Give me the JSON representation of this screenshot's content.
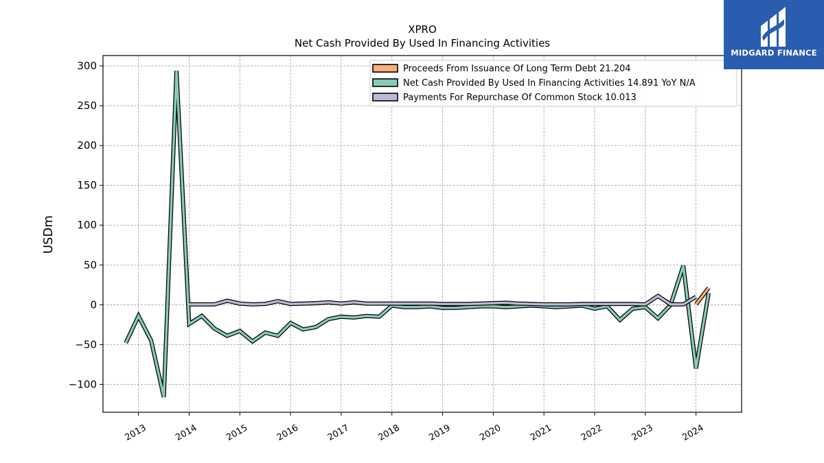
{
  "logo": {
    "text": "MIDGARD FINANCE",
    "icon": "midgard-logo-icon",
    "background": "#2a5db0"
  },
  "chart_data": {
    "type": "line",
    "title": "XPRO",
    "subtitle": "Net Cash Provided By Used In Financing Activities",
    "xlabel": "",
    "ylabel": "USDm",
    "xlim": [
      2012.3,
      2024.9
    ],
    "ylim": [
      -135,
      313
    ],
    "x_ticks": [
      2013,
      2014,
      2015,
      2016,
      2017,
      2018,
      2019,
      2020,
      2021,
      2022,
      2023,
      2024
    ],
    "x_tick_labels": [
      "2013",
      "2014",
      "2015",
      "2016",
      "2017",
      "2018",
      "2019",
      "2020",
      "2021",
      "2022",
      "2023",
      "2024"
    ],
    "y_ticks": [
      -100,
      -50,
      0,
      50,
      100,
      150,
      200,
      250,
      300
    ],
    "y_tick_labels": [
      "−100",
      "−50",
      "0",
      "50",
      "100",
      "150",
      "200",
      "250",
      "300"
    ],
    "grid": true,
    "legend_position": "top-right",
    "series": [
      {
        "name": "Proceeds From Issuance Of Long Term Debt",
        "legend": "Proceeds From Issuance Of Long Term Debt  21.204",
        "color": "#f7b074",
        "x": [
          2024.0,
          2024.25
        ],
        "y": [
          0.5,
          21.2
        ]
      },
      {
        "name": "Net Cash Provided By Used In Financing Activities",
        "legend": "Net Cash Provided By Used In Financing Activities  14.891 YoY N/A",
        "color": "#86cbb8",
        "x": [
          2012.75,
          2013.0,
          2013.25,
          2013.5,
          2013.75,
          2014.0,
          2014.25,
          2014.5,
          2014.75,
          2015.0,
          2015.25,
          2015.5,
          2015.75,
          2016.0,
          2016.25,
          2016.5,
          2016.75,
          2017.0,
          2017.25,
          2017.5,
          2017.75,
          2018.0,
          2018.25,
          2018.5,
          2018.75,
          2019.0,
          2019.25,
          2019.5,
          2019.75,
          2020.0,
          2020.25,
          2020.5,
          2020.75,
          2021.0,
          2021.25,
          2021.5,
          2021.75,
          2022.0,
          2022.25,
          2022.5,
          2022.75,
          2023.0,
          2023.25,
          2023.5,
          2023.75,
          2024.0,
          2024.25
        ],
        "y": [
          -48,
          -14,
          -45,
          -116,
          294,
          -24,
          -14,
          -30,
          -39,
          -33,
          -46,
          -35,
          -39,
          -23,
          -31,
          -28,
          -18,
          -15,
          -16,
          -14,
          -15,
          -1,
          -3,
          -3,
          -2,
          -4,
          -4,
          -3,
          -2,
          -2,
          -3,
          -2,
          -1,
          -2,
          -3,
          -2,
          -1,
          -5,
          -2,
          -19,
          -5,
          -3,
          -17,
          0,
          49,
          -80,
          14.9
        ]
      },
      {
        "name": "Payments For Repurchase Of Common Stock",
        "legend": "Payments For Repurchase Of Common Stock  10.013",
        "color": "#bcb8d8",
        "x": [
          2014.0,
          2014.25,
          2014.5,
          2014.75,
          2015.0,
          2015.25,
          2015.5,
          2015.75,
          2016.0,
          2016.25,
          2016.5,
          2016.75,
          2017.0,
          2017.25,
          2017.5,
          2017.75,
          2018.0,
          2018.25,
          2018.5,
          2018.75,
          2019.0,
          2019.25,
          2019.5,
          2019.75,
          2020.0,
          2020.25,
          2020.5,
          2020.75,
          2021.0,
          2021.25,
          2021.5,
          2021.75,
          2022.0,
          2022.25,
          2022.5,
          2022.75,
          2023.0,
          2023.25,
          2023.5,
          2023.75,
          2024.0
        ],
        "y": [
          0.5,
          0.5,
          0.5,
          5,
          1.5,
          0.5,
          1,
          4.5,
          1,
          1.5,
          2,
          3,
          1.5,
          3,
          1.5,
          1.5,
          1.5,
          1.5,
          1.5,
          1.5,
          1,
          1,
          1,
          1.5,
          2,
          2.5,
          1.5,
          1,
          0.5,
          0.5,
          0.5,
          1,
          1,
          1,
          1,
          1,
          0.5,
          11,
          0.5,
          0.5,
          10
        ]
      }
    ]
  }
}
